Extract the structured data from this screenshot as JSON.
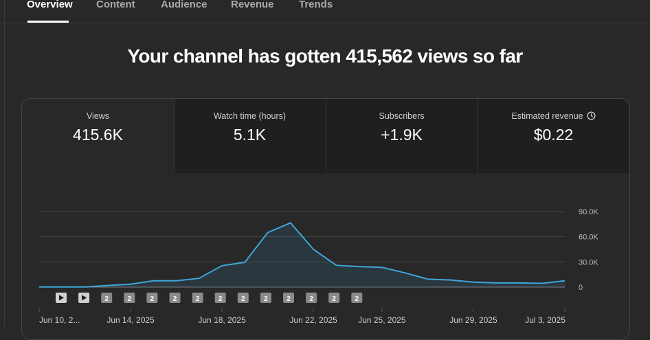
{
  "tabs": [
    "Overview",
    "Content",
    "Audience",
    "Revenue",
    "Trends"
  ],
  "headline": "Your channel has gotten 415,562 views so far",
  "metrics": [
    {
      "label": "Views",
      "value": "415.6K"
    },
    {
      "label": "Watch time (hours)",
      "value": "5.1K"
    },
    {
      "label": "Subscribers",
      "value": "+1.9K"
    },
    {
      "label": "Estimated revenue",
      "value": "$0.22"
    }
  ],
  "icons": {
    "revenue_info": "clock-icon",
    "play_marker": "play-icon"
  },
  "colors": {
    "line": "#3ea6d9",
    "background": "#282828",
    "active_tab": "#ffffff"
  },
  "chart_data": {
    "type": "line",
    "series_color": "#3ea6d9",
    "y_ticks": [
      "90.0K",
      "60.0K",
      "30.0K",
      "0"
    ],
    "ylim": [
      0,
      90000
    ],
    "grid": true,
    "x_labels": [
      "Jun 10, 2...",
      "Jun 14, 2025",
      "Jun 18, 2025",
      "Jun 22, 2025",
      "Jun 25, 2025",
      "Jun 29, 2025",
      "Jul 3, 2025"
    ],
    "x": [
      "Jun 10",
      "Jun 11",
      "Jun 12",
      "Jun 13",
      "Jun 14",
      "Jun 15",
      "Jun 16",
      "Jun 17",
      "Jun 18",
      "Jun 19",
      "Jun 20",
      "Jun 21",
      "Jun 22",
      "Jun 23",
      "Jun 24",
      "Jun 25",
      "Jun 26",
      "Jun 27",
      "Jun 28",
      "Jun 29",
      "Jun 30",
      "Jul 1",
      "Jul 2",
      "Jul 3"
    ],
    "values": [
      200,
      200,
      200,
      2000,
      3500,
      7500,
      7500,
      10500,
      25500,
      29500,
      65000,
      76500,
      45000,
      26000,
      24500,
      23500,
      17000,
      9500,
      8500,
      6000,
      5000,
      5000,
      4500,
      7500
    ],
    "markers": [
      "play",
      "play",
      "2",
      "2",
      "2",
      "2",
      "2",
      "2",
      "2",
      "2",
      "2",
      "2",
      "2",
      "2"
    ]
  }
}
